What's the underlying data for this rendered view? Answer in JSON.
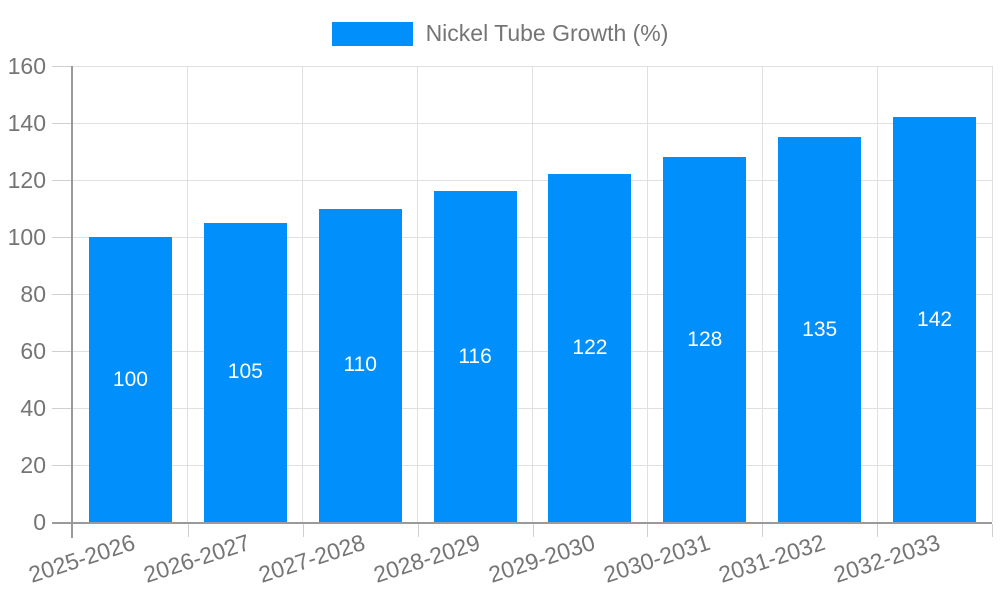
{
  "legend": {
    "label": "Nickel Tube Growth (%)"
  },
  "chart_data": {
    "type": "bar",
    "title": "",
    "series_name": "Nickel Tube Growth (%)",
    "categories": [
      "2025-2026",
      "2026-2027",
      "2027-2028",
      "2028-2029",
      "2029-2030",
      "2030-2031",
      "2031-2032",
      "2032-2033"
    ],
    "values": [
      100,
      105,
      110,
      116,
      122,
      128,
      135,
      142
    ],
    "xlabel": "",
    "ylabel": "",
    "ylim": [
      0,
      160
    ],
    "ytick_step": 20,
    "grid": true,
    "legend_position": "top",
    "value_labels": "inside-center",
    "colors": {
      "bar": "#008ffb",
      "grid": "#e0e0e0",
      "axis": "#9a9a9a",
      "tick": "#cfcfcf",
      "text": "#757575",
      "bar_label": "#ffffff"
    }
  }
}
